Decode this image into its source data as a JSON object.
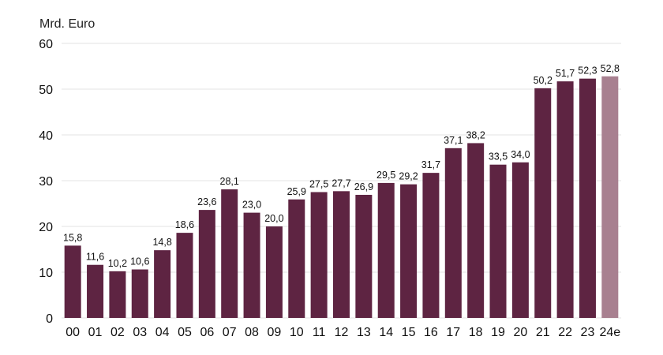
{
  "chart_data": {
    "type": "bar",
    "unit_label": "Mrd. Euro",
    "categories": [
      "00",
      "01",
      "02",
      "03",
      "04",
      "05",
      "06",
      "07",
      "08",
      "09",
      "10",
      "11",
      "12",
      "13",
      "14",
      "15",
      "16",
      "17",
      "18",
      "19",
      "20",
      "21",
      "22",
      "23",
      "24e"
    ],
    "values": [
      15.8,
      11.6,
      10.2,
      10.6,
      14.8,
      18.6,
      23.6,
      28.1,
      23.0,
      20.0,
      25.9,
      27.5,
      27.7,
      26.9,
      29.5,
      29.2,
      31.7,
      37.1,
      38.2,
      33.5,
      34.0,
      50.2,
      51.7,
      52.3,
      52.8
    ],
    "value_labels": [
      "15,8",
      "11,6",
      "10,2",
      "10,6",
      "14,8",
      "18,6",
      "23,6",
      "28,1",
      "23,0",
      "20,0",
      "25,9",
      "27,5",
      "27,7",
      "26,9",
      "29,5",
      "29,2",
      "31,7",
      "37,1",
      "38,2",
      "33,5",
      "34,0",
      "50,2",
      "51,7",
      "52,3",
      "52,8"
    ],
    "ylim": [
      0,
      60
    ],
    "yticks": [
      0,
      10,
      20,
      30,
      40,
      50,
      60
    ],
    "grid": true,
    "colors": {
      "bar": "#5e2442",
      "bar_estimate": "#a88090",
      "grid": "#e3e3e3",
      "text": "#111111"
    },
    "estimate_categories": [
      "24e"
    ]
  }
}
